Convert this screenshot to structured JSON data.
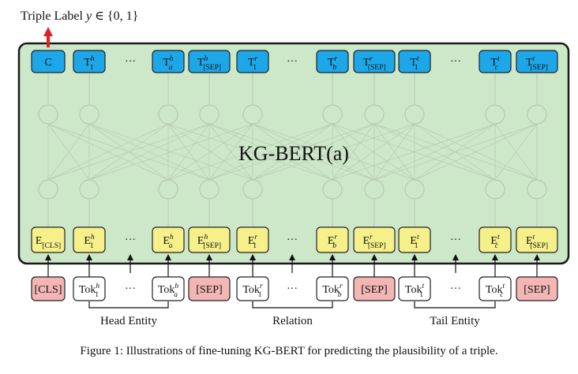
{
  "top_label": {
    "prefix": "Triple Label ",
    "y": "y",
    "rest": " ∈ {0, 1}"
  },
  "model_label": "KG-BERT(a)",
  "dots": "···",
  "output_tokens": [
    {
      "base": "C"
    },
    {
      "base": "T",
      "sub": "1",
      "sup": "h"
    },
    {
      "dots": true
    },
    {
      "base": "T",
      "sub": "a",
      "sup": "h"
    },
    {
      "base": "T",
      "sub": "[SEP]",
      "sup": "h"
    },
    {
      "base": "T",
      "sub": "1",
      "sup": "r"
    },
    {
      "dots": true
    },
    {
      "base": "T",
      "sub": "b",
      "sup": "r"
    },
    {
      "base": "T",
      "sub": "[SEP]",
      "sup": "r"
    },
    {
      "base": "T",
      "sub": "1",
      "sup": "t"
    },
    {
      "dots": true
    },
    {
      "base": "T",
      "sub": "c",
      "sup": "t"
    },
    {
      "base": "T",
      "sub": "[SEP]",
      "sup": "t"
    }
  ],
  "embedding_tokens": [
    {
      "base": "E",
      "sub": "[CLS]"
    },
    {
      "base": "E",
      "sub": "1",
      "sup": "h"
    },
    {
      "dots": true
    },
    {
      "base": "E",
      "sub": "a",
      "sup": "h"
    },
    {
      "base": "E",
      "sub": "[SEP]",
      "sup": "h"
    },
    {
      "base": "E",
      "sub": "1",
      "sup": "r"
    },
    {
      "dots": true
    },
    {
      "base": "E",
      "sub": "b",
      "sup": "r"
    },
    {
      "base": "E",
      "sub": "[SEP]",
      "sup": "r"
    },
    {
      "base": "E",
      "sub": "1",
      "sup": "t"
    },
    {
      "dots": true
    },
    {
      "base": "E",
      "sub": "c",
      "sup": "t"
    },
    {
      "base": "E",
      "sub": "[SEP]",
      "sup": "t"
    }
  ],
  "input_tokens": [
    {
      "base": "[CLS]",
      "special": true
    },
    {
      "base": "Tok",
      "sub": "1",
      "sup": "h"
    },
    {
      "dots": true
    },
    {
      "base": "Tok",
      "sub": "a",
      "sup": "h"
    },
    {
      "base": "[SEP]",
      "special": true
    },
    {
      "base": "Tok",
      "sub": "1",
      "sup": "r"
    },
    {
      "dots": true
    },
    {
      "base": "Tok",
      "sub": "b",
      "sup": "r"
    },
    {
      "base": "[SEP]",
      "special": true
    },
    {
      "base": "Tok",
      "sub": "1",
      "sup": "t"
    },
    {
      "dots": true
    },
    {
      "base": "Tok",
      "sub": "c",
      "sup": "t"
    },
    {
      "base": "[SEP]",
      "special": true
    }
  ],
  "groups": [
    {
      "label": "Head Entity"
    },
    {
      "label": "Relation"
    },
    {
      "label": "Tail Entity"
    }
  ],
  "caption": "Figure 1: Illustrations of fine-tuning KG-BERT for predicting the plausibility of a triple.",
  "colors": {
    "panel_fill": "#cde8c9",
    "panel_stroke": "#1a1a1a",
    "output_fill": "#1ea7e8",
    "embed_fill": "#f5f08a",
    "special_fill": "#f4b5b5",
    "plain_fill": "#ffffff",
    "arrow_red": "#e02020",
    "node_stroke": "#b6c9b2",
    "edge_stroke": "#b6c9b2"
  }
}
